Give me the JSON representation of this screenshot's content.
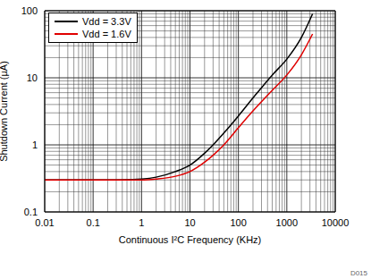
{
  "chart_data": {
    "type": "line",
    "x_label": "Continuous I²C Frequency (KHz)",
    "y_label": "Shutdown Current (µA)",
    "annotations": [
      "D015"
    ],
    "x": [
      0.01,
      0.03,
      0.1,
      0.3,
      1,
      2,
      5,
      10,
      20,
      30,
      50,
      100,
      200,
      500,
      1000,
      2000,
      3400
    ],
    "series": [
      {
        "name": "Vdd = 3.3V",
        "color": "#000000",
        "values": [
          0.3,
          0.3,
          0.3,
          0.3,
          0.31,
          0.33,
          0.4,
          0.5,
          0.75,
          1.0,
          1.5,
          2.7,
          5,
          11,
          19,
          40,
          90
        ]
      },
      {
        "name": "Vdd = 1.6V",
        "color": "#e00000",
        "values": [
          0.3,
          0.3,
          0.3,
          0.3,
          0.3,
          0.31,
          0.34,
          0.4,
          0.55,
          0.7,
          1.0,
          1.8,
          3.2,
          6.5,
          11,
          22,
          45
        ]
      }
    ],
    "xlim": [
      0.01,
      10000
    ],
    "ylim": [
      0.1,
      100
    ],
    "xticks": [
      0.01,
      0.1,
      1,
      10,
      100,
      1000,
      10000
    ],
    "yticks": [
      0.1,
      1,
      10,
      100
    ],
    "log": true,
    "grid": true,
    "legend": "top left"
  }
}
